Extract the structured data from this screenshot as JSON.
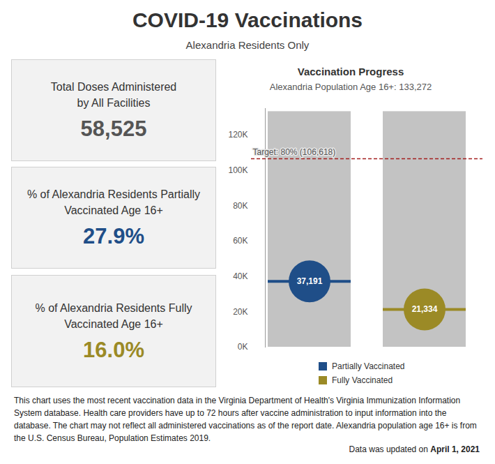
{
  "title": "COVID-19 Vaccinations",
  "subtitle": "Alexandria Residents Only",
  "cards": [
    {
      "label": [
        "Total Doses Administered",
        "by All Facilities"
      ],
      "value": "58,525",
      "color": "#555555"
    },
    {
      "label": [
        "% of Alexandria Residents Partially",
        "Vaccinated Age 16+"
      ],
      "value": "27.9%",
      "color": "#1f4e88"
    },
    {
      "label": [
        "% of Alexandria Residents Fully",
        "Vaccinated Age 16+"
      ],
      "value": "16.0%",
      "color": "#9b8a26"
    }
  ],
  "chart_data": {
    "type": "dot",
    "title": "Vaccination Progress",
    "subtitle": "Alexandria Population Age 16+: 133,272",
    "categories": [
      null,
      null
    ],
    "population": 133272,
    "target": {
      "value": 106618,
      "label": "Target: 80% (106,618)"
    },
    "series": [
      {
        "name": "Partially Vaccinated",
        "color": "#1f4e88",
        "values": [
          37191,
          null
        ],
        "value_labels": [
          "37,191",
          null
        ]
      },
      {
        "name": "Fully Vaccinated",
        "color": "#9b8a26",
        "values": [
          null,
          21334
        ],
        "value_labels": [
          null,
          "21,334"
        ]
      }
    ],
    "ylim": [
      0,
      135000
    ],
    "yticks": [
      {
        "value": 0,
        "label": "0K"
      },
      {
        "value": 20000,
        "label": "20K"
      },
      {
        "value": 40000,
        "label": "40K"
      },
      {
        "value": 60000,
        "label": "60K"
      },
      {
        "value": 80000,
        "label": "80K"
      },
      {
        "value": 100000,
        "label": "100K"
      },
      {
        "value": 120000,
        "label": "120K"
      }
    ],
    "data_labels": true,
    "marker": "circle",
    "legend": "bottom"
  },
  "note": "This chart uses the most recent vaccination data in the Virginia Department of Health's Virginia Immunization Information System database. Health care providers have up to 72 hours after vaccine administration to input information into the database. The chart may not reflect all administered vaccinations as of the report date. Alexandria population age 16+ is from the U.S. Census Bureau, Population Estimates 2019.",
  "updated_text": "Data was updated on",
  "updated_date": "April 1, 2021"
}
